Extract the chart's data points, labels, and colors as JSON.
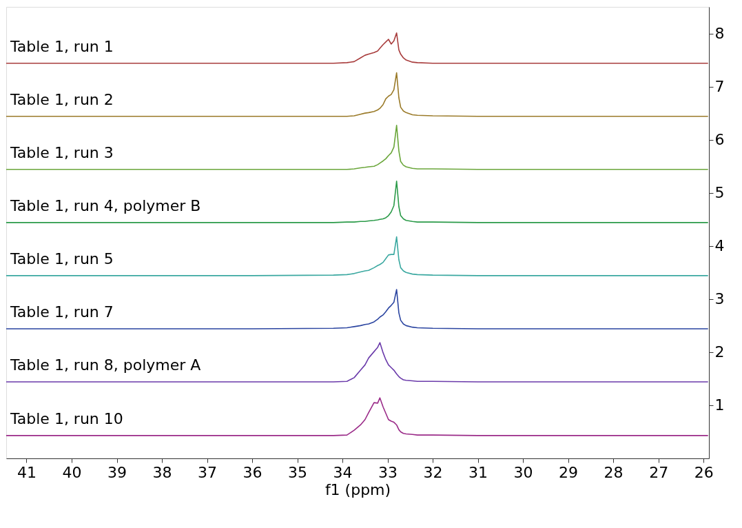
{
  "chart_data": {
    "type": "line",
    "xlabel": "f1 (ppm)",
    "x": [
      41.45,
      36.0,
      34.2,
      33.9,
      33.74,
      33.6,
      33.5,
      33.42,
      33.3,
      33.22,
      33.17,
      33.1,
      33.04,
      32.98,
      32.92,
      32.86,
      32.8,
      32.75,
      32.71,
      32.65,
      32.59,
      32.45,
      32.34,
      32.0,
      31.0,
      28.0,
      25.9
    ],
    "xlim": [
      41.45,
      25.88
    ],
    "xticks": [
      41,
      40,
      39,
      38,
      37,
      36,
      35,
      34,
      33,
      32,
      31,
      30,
      29,
      28,
      27,
      26
    ],
    "ylim": [
      0,
      8.5
    ],
    "yticks": [
      1,
      2,
      3,
      4,
      5,
      6,
      7,
      8
    ],
    "grid": false,
    "legend": false,
    "series": [
      {
        "name": "Table 1, run 1",
        "color": "#a83c3c",
        "values": [
          7.44,
          7.44,
          7.44,
          7.45,
          7.47,
          7.54,
          7.59,
          7.61,
          7.64,
          7.67,
          7.72,
          7.79,
          7.84,
          7.89,
          7.8,
          7.86,
          8.01,
          7.69,
          7.61,
          7.54,
          7.5,
          7.46,
          7.45,
          7.44,
          7.44,
          7.44,
          7.44
        ]
      },
      {
        "name": "Table 1, run 2",
        "color": "#9a7a28",
        "values": [
          6.44,
          6.44,
          6.44,
          6.44,
          6.45,
          6.48,
          6.5,
          6.51,
          6.53,
          6.56,
          6.59,
          6.66,
          6.77,
          6.82,
          6.85,
          6.94,
          7.26,
          6.79,
          6.61,
          6.54,
          6.51,
          6.47,
          6.46,
          6.45,
          6.44,
          6.44,
          6.44
        ]
      },
      {
        "name": "Table 1, run 3",
        "color": "#6aa63a",
        "values": [
          5.44,
          5.44,
          5.44,
          5.44,
          5.45,
          5.47,
          5.48,
          5.49,
          5.5,
          5.53,
          5.56,
          5.6,
          5.64,
          5.7,
          5.75,
          5.86,
          6.27,
          5.79,
          5.59,
          5.52,
          5.49,
          5.46,
          5.45,
          5.45,
          5.44,
          5.44,
          5.44
        ]
      },
      {
        "name": "Table 1, run 4, polymer B",
        "color": "#2a9a48",
        "values": [
          4.44,
          4.44,
          4.44,
          4.45,
          4.45,
          4.46,
          4.46,
          4.47,
          4.48,
          4.49,
          4.5,
          4.51,
          4.53,
          4.57,
          4.64,
          4.76,
          5.22,
          4.74,
          4.57,
          4.51,
          4.48,
          4.46,
          4.45,
          4.45,
          4.44,
          4.44,
          4.44
        ]
      },
      {
        "name": "Table 1, run 5",
        "color": "#3aa8a0",
        "values": [
          3.44,
          3.44,
          3.45,
          3.46,
          3.48,
          3.51,
          3.53,
          3.54,
          3.59,
          3.63,
          3.65,
          3.69,
          3.76,
          3.83,
          3.84,
          3.84,
          4.17,
          3.74,
          3.59,
          3.53,
          3.5,
          3.47,
          3.46,
          3.45,
          3.44,
          3.44,
          3.44
        ]
      },
      {
        "name": "Table 1, run 7",
        "color": "#2a44a0",
        "values": [
          2.44,
          2.44,
          2.45,
          2.46,
          2.48,
          2.5,
          2.52,
          2.53,
          2.57,
          2.62,
          2.66,
          2.7,
          2.76,
          2.83,
          2.88,
          2.94,
          3.18,
          2.74,
          2.6,
          2.53,
          2.5,
          2.47,
          2.46,
          2.45,
          2.44,
          2.44,
          2.44
        ]
      },
      {
        "name": "Table 1, run 8, polymer A",
        "color": "#6a3aaa",
        "values": [
          1.44,
          1.44,
          1.44,
          1.45,
          1.52,
          1.66,
          1.76,
          1.89,
          2.01,
          2.09,
          2.18,
          1.99,
          1.86,
          1.76,
          1.71,
          1.66,
          1.59,
          1.54,
          1.51,
          1.48,
          1.47,
          1.46,
          1.45,
          1.45,
          1.44,
          1.44,
          1.44
        ]
      },
      {
        "name": "Table 1, run 10",
        "color": "#9a2a88",
        "values": [
          0.43,
          0.43,
          0.43,
          0.44,
          0.53,
          0.63,
          0.73,
          0.86,
          1.05,
          1.04,
          1.14,
          0.97,
          0.85,
          0.73,
          0.7,
          0.68,
          0.63,
          0.54,
          0.5,
          0.47,
          0.46,
          0.45,
          0.44,
          0.44,
          0.43,
          0.43,
          0.43
        ]
      }
    ]
  }
}
